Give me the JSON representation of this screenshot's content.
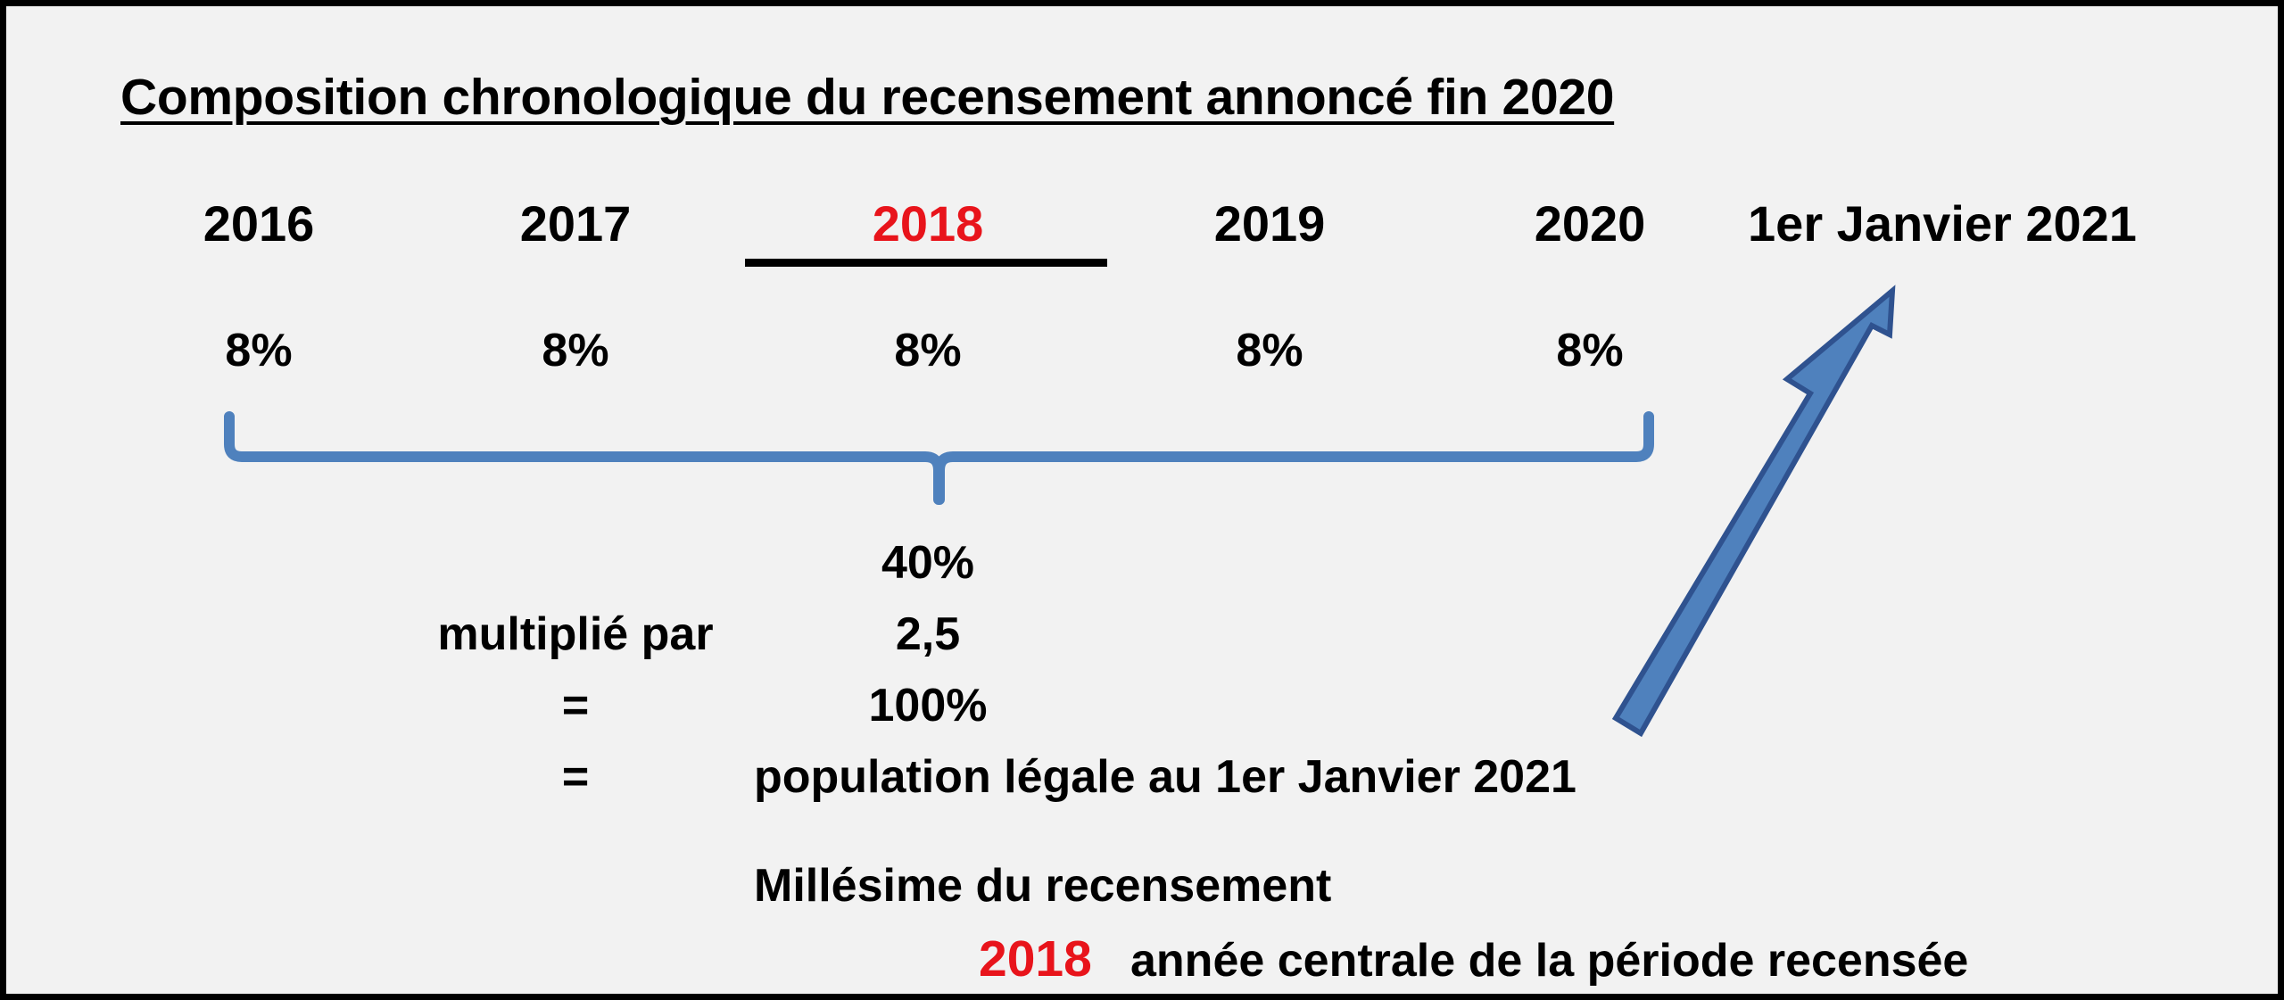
{
  "title": "Composition chronologique du recensement annoncé fin 2020",
  "years": [
    {
      "label": "2016",
      "pct": "8%",
      "highlight": false
    },
    {
      "label": "2017",
      "pct": "8%",
      "highlight": false
    },
    {
      "label": "2018",
      "pct": "8%",
      "highlight": true
    },
    {
      "label": "2019",
      "pct": "8%",
      "highlight": false
    },
    {
      "label": "2020",
      "pct": "8%",
      "highlight": false
    }
  ],
  "target_date": "1er Janvier 2021",
  "calc": {
    "sum": "40%",
    "multiply_label": "multiplié par",
    "multiplier": "2,5",
    "equals_1": "=",
    "result": "100%",
    "equals_2": "=",
    "result_text": "population légale au 1er Janvier 2021"
  },
  "millesime": {
    "label": "Millésime du recensement",
    "year": "2018",
    "description": "année centrale de la période recensée"
  },
  "colors": {
    "background": "#f2f2f2",
    "highlight_red": "#e8141b",
    "brace_blue": "#4f81bd",
    "arrow_fill": "#4f81bd",
    "arrow_stroke": "#2f528f"
  }
}
